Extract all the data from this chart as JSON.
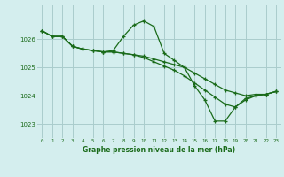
{
  "background_color": "#d4eeee",
  "grid_color": "#aacccc",
  "line_color": "#1a6b1a",
  "title": "Graphe pression niveau de la mer (hPa)",
  "xlim": [
    -0.5,
    23.5
  ],
  "ylim": [
    1022.5,
    1027.2
  ],
  "yticks": [
    1023,
    1024,
    1025,
    1026
  ],
  "xticks": [
    0,
    1,
    2,
    3,
    4,
    5,
    6,
    7,
    8,
    9,
    10,
    11,
    12,
    13,
    14,
    15,
    16,
    17,
    18,
    19,
    20,
    21,
    22,
    23
  ],
  "series": [
    [
      1026.3,
      1026.1,
      1026.1,
      1025.75,
      1025.65,
      1025.6,
      1025.55,
      1025.6,
      1026.1,
      1026.5,
      1026.65,
      1026.45,
      1025.5,
      1025.25,
      1025.0,
      1024.35,
      1023.85,
      1023.1,
      1023.1,
      1023.6,
      1023.85,
      1024.0,
      1024.05,
      1024.15
    ],
    [
      1026.3,
      1026.1,
      1026.1,
      1025.75,
      1025.65,
      1025.6,
      1025.55,
      1025.55,
      1025.5,
      1025.45,
      1025.4,
      1025.3,
      1025.2,
      1025.1,
      1025.0,
      1024.8,
      1024.6,
      1024.4,
      1024.2,
      1024.1,
      1024.0,
      1024.05,
      1024.05,
      1024.15
    ],
    [
      1026.3,
      1026.1,
      1026.1,
      1025.75,
      1025.65,
      1025.6,
      1025.55,
      1025.55,
      1025.5,
      1025.45,
      1025.35,
      1025.2,
      1025.05,
      1024.9,
      1024.7,
      1024.45,
      1024.2,
      1023.95,
      1023.7,
      1023.6,
      1023.9,
      1024.0,
      1024.05,
      1024.15
    ]
  ]
}
